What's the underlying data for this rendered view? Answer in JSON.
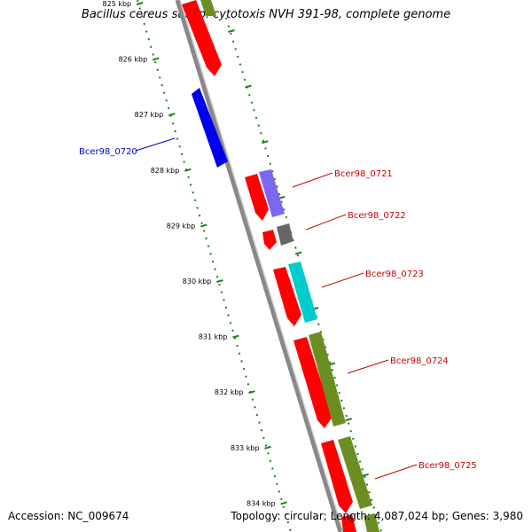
{
  "title": "Bacillus cereus subsp. cytotoxis NVH 391-98, complete genome",
  "footer": {
    "accession": "Accession: NC_009674",
    "summary": "Topology: circular; Length: 4,087,024 bp; Genes: 3,980"
  },
  "colors": {
    "cds_forward": "#ff0000",
    "cds_reverse": "#0000ee",
    "gene_track_olive": "#6b8e23",
    "gene_track_purple": "#7b68ee",
    "gene_track_gray": "#666666",
    "gene_track_cyan": "#00cccc",
    "scale_ticks": "#1e7d1e",
    "backbone": "#888888",
    "label_forward": "#cc0000",
    "label_reverse": "#0000cc"
  },
  "scale": {
    "unit": "kbp",
    "ticks": [
      "825 kbp",
      "826 kbp",
      "827 kbp",
      "828 kbp",
      "829 kbp",
      "830 kbp",
      "831 kbp",
      "832 kbp",
      "833 kbp",
      "834 kbp"
    ]
  },
  "genes": [
    {
      "label": "Bcer98_0720",
      "strand": "reverse",
      "color": "#0000ee"
    },
    {
      "label": "Bcer98_0721",
      "strand": "forward",
      "color": "#7b68ee"
    },
    {
      "label": "Bcer98_0722",
      "strand": "forward",
      "color": "#666666"
    },
    {
      "label": "Bcer98_0723",
      "strand": "forward",
      "color": "#00cccc"
    },
    {
      "label": "Bcer98_0724",
      "strand": "forward",
      "color": "#6b8e23"
    },
    {
      "label": "Bcer98_0725",
      "strand": "forward",
      "color": "#6b8e23"
    }
  ]
}
